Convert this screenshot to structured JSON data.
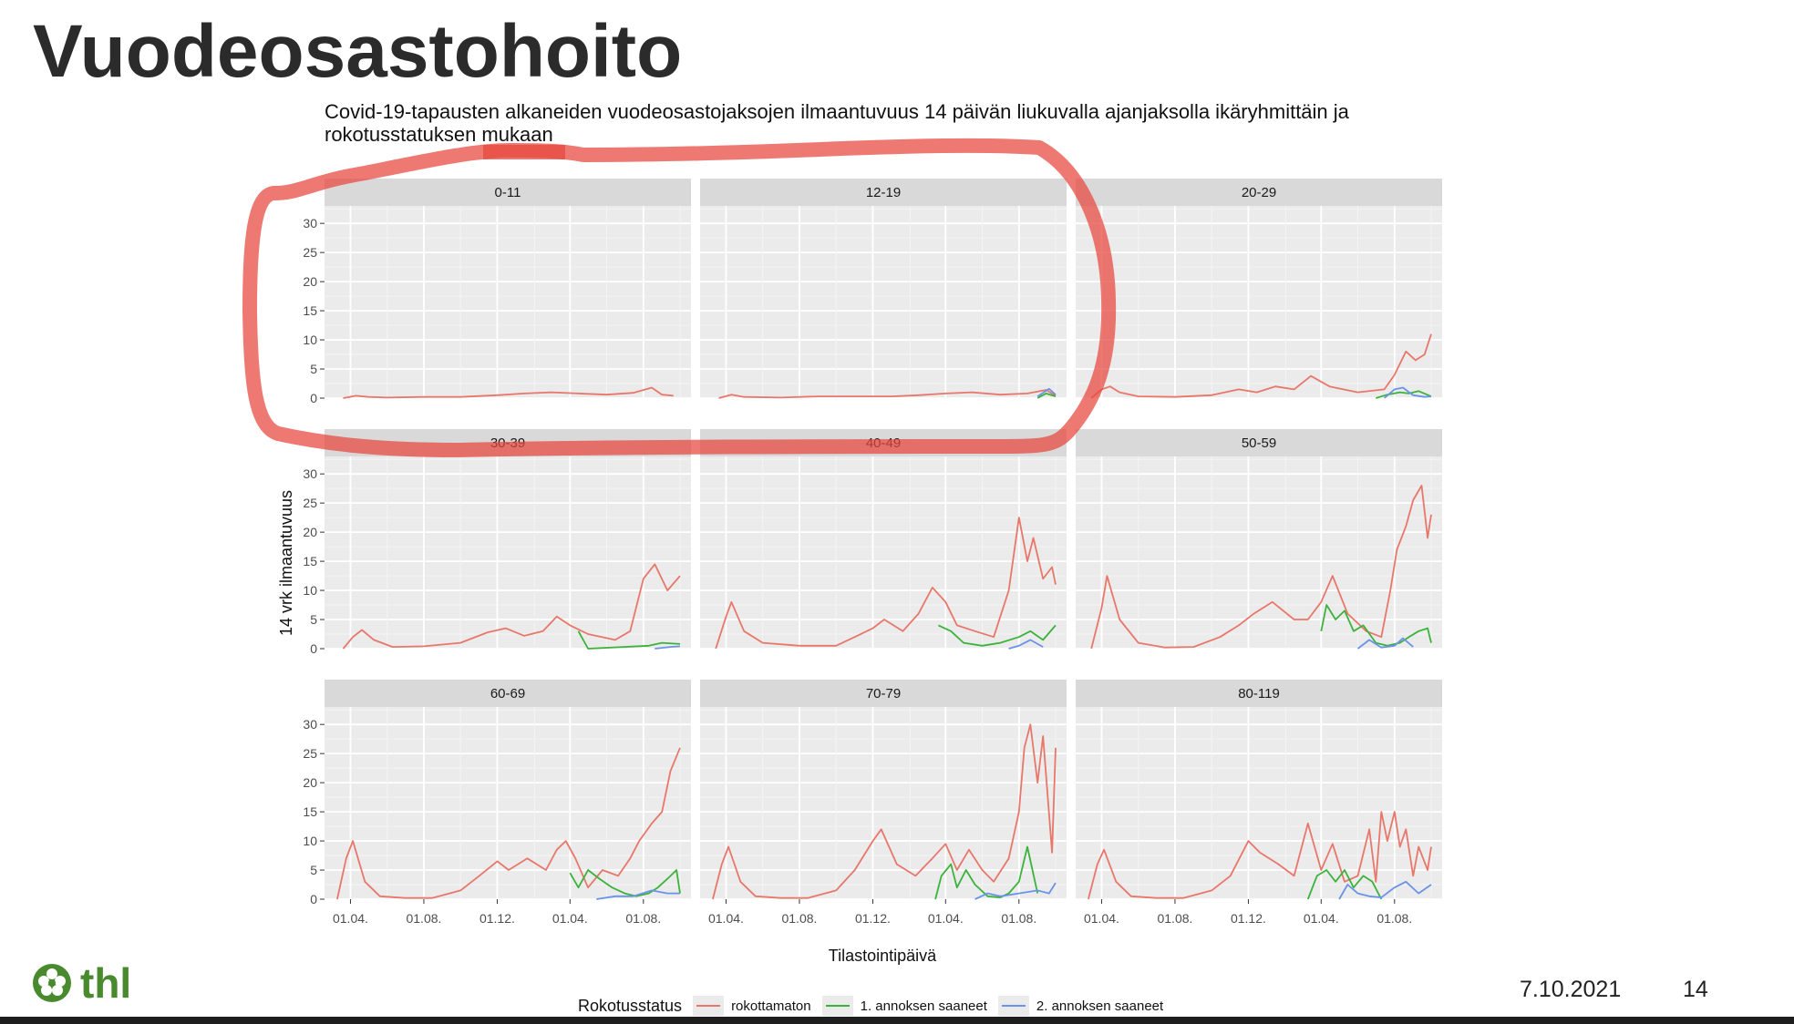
{
  "slide": {
    "title": "Vuodeosastohoito",
    "date": "7.10.2021",
    "page": "14",
    "logo_text": "thl"
  },
  "chart_data": {
    "type": "line",
    "title": "Covid-19-tapausten alkaneiden vuodeosastojaksojen ilmaantuvuus 14 päivän liukuvalla ajanjaksolla ikäryhmittäin ja rokotusstatuksen mukaan",
    "xlabel": "Tilastointipäivä",
    "ylabel": "14 vrk ilmaantuvuus",
    "ylim": [
      0,
      33
    ],
    "y_ticks": [
      "0",
      "5",
      "10",
      "15",
      "20",
      "25",
      "30"
    ],
    "x_ticks": [
      "01.04.",
      "01.08.",
      "01.12.",
      "01.04.",
      "01.08."
    ],
    "x_tick_dates": [
      "2020-04-01",
      "2020-08-01",
      "2020-12-01",
      "2021-04-01",
      "2021-08-01"
    ],
    "x_range": [
      "2020-03-01",
      "2021-10-07"
    ],
    "grid": true,
    "legend": {
      "title": "Rokotusstatus",
      "placement": "bottom",
      "entries": [
        {
          "label": "rokottamaton",
          "color": "#e8776b"
        },
        {
          "label": "1. annoksen saaneet",
          "color": "#3bb33b"
        },
        {
          "label": "2. annoksen saaneet",
          "color": "#6a93e8"
        }
      ]
    },
    "annotation": {
      "shape": "hand-drawn red ellipse",
      "color": "#e8453c",
      "encloses": [
        "0-11",
        "12-19"
      ]
    },
    "panels": [
      {
        "label": "0-11",
        "series": [
          {
            "name": "rokottamaton",
            "x": [
              "2020-03-20",
              "2020-04-10",
              "2020-05-01",
              "2020-06-01",
              "2020-08-01",
              "2020-10-01",
              "2020-12-01",
              "2021-01-15",
              "2021-03-01",
              "2021-04-15",
              "2021-06-01",
              "2021-07-15",
              "2021-08-15",
              "2021-09-01",
              "2021-09-20"
            ],
            "y": [
              0,
              0.4,
              0.2,
              0.1,
              0.2,
              0.2,
              0.5,
              0.8,
              1.0,
              0.8,
              0.6,
              0.9,
              1.8,
              0.6,
              0.4
            ]
          }
        ]
      },
      {
        "label": "12-19",
        "series": [
          {
            "name": "rokottamaton",
            "x": [
              "2020-03-20",
              "2020-04-10",
              "2020-05-01",
              "2020-07-01",
              "2020-09-01",
              "2020-11-01",
              "2021-01-01",
              "2021-02-15",
              "2021-04-01",
              "2021-05-15",
              "2021-07-01",
              "2021-08-15",
              "2021-09-15",
              "2021-10-01"
            ],
            "y": [
              0,
              0.6,
              0.2,
              0.1,
              0.3,
              0.3,
              0.3,
              0.5,
              0.8,
              1.0,
              0.6,
              0.8,
              1.4,
              0.4
            ]
          },
          {
            "name": "1. annoksen saaneet",
            "x": [
              "2021-09-01",
              "2021-09-15",
              "2021-10-01"
            ],
            "y": [
              0,
              0.8,
              0.3
            ]
          },
          {
            "name": "2. annoksen saaneet",
            "x": [
              "2021-09-01",
              "2021-09-20",
              "2021-10-01"
            ],
            "y": [
              0.3,
              1.6,
              0.6
            ]
          }
        ]
      },
      {
        "label": "20-29",
        "series": [
          {
            "name": "rokottamaton",
            "x": [
              "2020-03-15",
              "2020-04-01",
              "2020-04-15",
              "2020-05-01",
              "2020-06-01",
              "2020-08-01",
              "2020-10-01",
              "2020-11-15",
              "2020-12-15",
              "2021-01-15",
              "2021-02-15",
              "2021-03-15",
              "2021-04-15",
              "2021-06-01",
              "2021-07-15",
              "2021-08-01",
              "2021-08-20",
              "2021-09-05",
              "2021-09-20",
              "2021-10-01"
            ],
            "y": [
              0,
              1.5,
              2.0,
              1.0,
              0.3,
              0.2,
              0.5,
              1.5,
              1.0,
              2.0,
              1.5,
              3.8,
              2.0,
              1.0,
              1.5,
              4.0,
              8.0,
              6.5,
              7.5,
              11.0
            ]
          },
          {
            "name": "1. annoksen saaneet",
            "x": [
              "2021-07-01",
              "2021-07-20",
              "2021-08-10",
              "2021-08-25",
              "2021-09-10",
              "2021-10-01"
            ],
            "y": [
              0,
              0.6,
              1.0,
              0.8,
              1.2,
              0.3
            ]
          },
          {
            "name": "2. annoksen saaneet",
            "x": [
              "2021-07-15",
              "2021-08-01",
              "2021-08-15",
              "2021-09-01",
              "2021-09-20",
              "2021-10-01"
            ],
            "y": [
              0,
              1.5,
              1.8,
              0.5,
              0.2,
              0.3
            ]
          }
        ]
      },
      {
        "label": "30-39",
        "series": [
          {
            "name": "rokottamaton",
            "x": [
              "2020-03-20",
              "2020-04-05",
              "2020-04-20",
              "2020-05-10",
              "2020-06-10",
              "2020-08-01",
              "2020-10-01",
              "2020-11-15",
              "2020-12-15",
              "2021-01-15",
              "2021-02-15",
              "2021-03-10",
              "2021-04-01",
              "2021-05-01",
              "2021-06-15",
              "2021-07-10",
              "2021-08-01",
              "2021-08-20",
              "2021-09-10",
              "2021-10-01"
            ],
            "y": [
              0,
              2.0,
              3.2,
              1.5,
              0.3,
              0.4,
              1.0,
              2.8,
              3.5,
              2.2,
              3.0,
              5.5,
              4.0,
              2.5,
              1.5,
              3.0,
              12.0,
              14.5,
              10.0,
              12.5
            ]
          },
          {
            "name": "1. annoksen saaneet",
            "x": [
              "2021-04-15",
              "2021-05-01",
              "2021-08-10",
              "2021-09-01",
              "2021-10-01"
            ],
            "y": [
              3.0,
              0,
              0.5,
              1.0,
              0.8
            ]
          },
          {
            "name": "2. annoksen saaneet",
            "x": [
              "2021-08-20",
              "2021-09-15",
              "2021-10-01"
            ],
            "y": [
              0,
              0.3,
              0.4
            ]
          }
        ]
      },
      {
        "label": "40-49",
        "series": [
          {
            "name": "rokottamaton",
            "x": [
              "2020-03-15",
              "2020-04-01",
              "2020-04-10",
              "2020-05-01",
              "2020-06-01",
              "2020-08-01",
              "2020-10-01",
              "2020-11-01",
              "2020-12-01",
              "2020-12-20",
              "2021-01-20",
              "2021-02-15",
              "2021-03-10",
              "2021-04-01",
              "2021-04-20",
              "2021-05-20",
              "2021-06-20",
              "2021-07-15",
              "2021-08-01",
              "2021-08-15",
              "2021-08-25",
              "2021-09-10",
              "2021-09-25",
              "2021-10-01"
            ],
            "y": [
              0,
              5.5,
              8.0,
              3.0,
              1.0,
              0.5,
              0.5,
              2.0,
              3.5,
              5.0,
              3.0,
              6.0,
              10.5,
              8.0,
              4.0,
              3.0,
              2.0,
              10.0,
              22.5,
              15.0,
              19.0,
              12.0,
              14.0,
              11.0
            ]
          },
          {
            "name": "1. annoksen saaneet",
            "x": [
              "2021-03-20",
              "2021-04-10",
              "2021-05-01",
              "2021-06-01",
              "2021-07-01",
              "2021-08-01",
              "2021-08-20",
              "2021-09-10",
              "2021-10-01"
            ],
            "y": [
              4.0,
              3.0,
              1.0,
              0.5,
              1.0,
              2.0,
              3.0,
              1.5,
              4.0
            ]
          },
          {
            "name": "2. annoksen saaneet",
            "x": [
              "2021-07-15",
              "2021-08-01",
              "2021-08-20",
              "2021-09-10"
            ],
            "y": [
              0,
              0.5,
              1.5,
              0.3
            ]
          }
        ]
      },
      {
        "label": "50-59",
        "series": [
          {
            "name": "rokottamaton",
            "x": [
              "2020-03-15",
              "2020-04-01",
              "2020-04-10",
              "2020-05-01",
              "2020-06-01",
              "2020-07-15",
              "2020-09-01",
              "2020-10-15",
              "2020-11-15",
              "2020-12-10",
              "2021-01-10",
              "2021-02-15",
              "2021-03-10",
              "2021-04-01",
              "2021-04-20",
              "2021-05-15",
              "2021-06-15",
              "2021-07-10",
              "2021-07-25",
              "2021-08-05",
              "2021-08-20",
              "2021-09-01",
              "2021-09-15",
              "2021-09-25",
              "2021-10-01"
            ],
            "y": [
              0,
              7.0,
              12.5,
              5.0,
              1.0,
              0.2,
              0.3,
              2.0,
              4.0,
              6.0,
              8.0,
              5.0,
              5.0,
              8.0,
              12.5,
              6.0,
              3.0,
              2.0,
              10.0,
              17.0,
              21.0,
              25.5,
              28.0,
              19.0,
              23.0
            ]
          },
          {
            "name": "1. annoksen saaneet",
            "x": [
              "2021-04-01",
              "2021-04-10",
              "2021-04-25",
              "2021-05-10",
              "2021-05-25",
              "2021-06-10",
              "2021-07-01",
              "2021-07-20",
              "2021-08-10",
              "2021-08-25",
              "2021-09-10",
              "2021-09-25",
              "2021-10-01"
            ],
            "y": [
              3.0,
              7.5,
              5.0,
              6.5,
              3.0,
              4.0,
              1.0,
              0.5,
              1.0,
              2.0,
              3.0,
              3.5,
              1.0
            ]
          },
          {
            "name": "2. annoksen saaneet",
            "x": [
              "2021-06-01",
              "2021-06-20",
              "2021-07-10",
              "2021-08-01",
              "2021-08-15",
              "2021-09-01"
            ],
            "y": [
              0,
              1.5,
              0.2,
              0.5,
              1.8,
              0.3
            ]
          }
        ]
      },
      {
        "label": "60-69",
        "series": [
          {
            "name": "rokottamaton",
            "x": [
              "2020-03-10",
              "2020-03-25",
              "2020-04-05",
              "2020-04-25",
              "2020-05-20",
              "2020-07-01",
              "2020-08-15",
              "2020-10-01",
              "2020-11-01",
              "2020-12-01",
              "2020-12-20",
              "2021-01-20",
              "2021-02-20",
              "2021-03-10",
              "2021-03-25",
              "2021-04-10",
              "2021-05-01",
              "2021-05-25",
              "2021-06-20",
              "2021-07-10",
              "2021-07-25",
              "2021-08-15",
              "2021-09-01",
              "2021-09-15",
              "2021-10-01"
            ],
            "y": [
              0,
              7.0,
              10.0,
              3.0,
              0.5,
              0.2,
              0.2,
              1.5,
              4.0,
              6.5,
              5.0,
              7.0,
              5.0,
              8.5,
              10.0,
              7.0,
              2.0,
              5.0,
              4.0,
              7.0,
              10.0,
              13.0,
              15.0,
              22.0,
              26.0
            ]
          },
          {
            "name": "1. annoksen saaneet",
            "x": [
              "2021-04-01",
              "2021-04-15",
              "2021-05-01",
              "2021-05-20",
              "2021-06-10",
              "2021-07-01",
              "2021-07-20",
              "2021-08-10",
              "2021-08-25",
              "2021-09-10",
              "2021-09-25",
              "2021-10-01"
            ],
            "y": [
              4.5,
              2.0,
              5.0,
              3.5,
              2.0,
              1.0,
              0.5,
              1.0,
              2.0,
              3.5,
              5.0,
              1.0
            ]
          },
          {
            "name": "2. annoksen saaneet",
            "x": [
              "2021-05-15",
              "2021-06-15",
              "2021-07-15",
              "2021-08-15",
              "2021-09-10",
              "2021-10-01"
            ],
            "y": [
              0,
              0.5,
              0.5,
              1.5,
              1.0,
              1.0
            ]
          }
        ]
      },
      {
        "label": "70-79",
        "series": [
          {
            "name": "rokottamaton",
            "x": [
              "2020-03-10",
              "2020-03-25",
              "2020-04-05",
              "2020-04-25",
              "2020-05-20",
              "2020-07-01",
              "2020-08-15",
              "2020-10-01",
              "2020-11-01",
              "2020-12-01",
              "2020-12-15",
              "2021-01-10",
              "2021-02-10",
              "2021-03-10",
              "2021-04-01",
              "2021-04-20",
              "2021-05-10",
              "2021-06-01",
              "2021-06-20",
              "2021-07-15",
              "2021-08-01",
              "2021-08-10",
              "2021-08-20",
              "2021-09-01",
              "2021-09-10",
              "2021-09-25",
              "2021-10-01"
            ],
            "y": [
              0,
              6.0,
              9.0,
              3.0,
              0.5,
              0.2,
              0.2,
              1.5,
              5.0,
              10.0,
              12.0,
              6.0,
              4.0,
              7.0,
              9.5,
              5.0,
              8.5,
              5.0,
              3.0,
              7.0,
              15.0,
              26.0,
              30.0,
              20.0,
              28.0,
              8.0,
              26.0
            ]
          },
          {
            "name": "1. annoksen saaneet",
            "x": [
              "2021-03-15",
              "2021-03-25",
              "2021-04-10",
              "2021-04-20",
              "2021-05-05",
              "2021-05-20",
              "2021-06-10",
              "2021-07-01",
              "2021-07-15",
              "2021-08-01",
              "2021-08-15",
              "2021-09-01"
            ],
            "y": [
              0,
              4.0,
              6.0,
              2.0,
              5.0,
              2.5,
              0.5,
              0.3,
              1.0,
              3.0,
              9.0,
              1.0
            ]
          },
          {
            "name": "2. annoksen saaneet",
            "x": [
              "2021-05-20",
              "2021-06-10",
              "2021-07-01",
              "2021-08-01",
              "2021-09-01",
              "2021-09-20",
              "2021-10-01"
            ],
            "y": [
              0,
              1.0,
              0.5,
              1.0,
              1.5,
              1.0,
              2.8
            ]
          }
        ]
      },
      {
        "label": "80-119",
        "series": [
          {
            "name": "rokottamaton",
            "x": [
              "2020-03-10",
              "2020-03-25",
              "2020-04-05",
              "2020-04-25",
              "2020-05-20",
              "2020-07-01",
              "2020-08-15",
              "2020-10-01",
              "2020-11-01",
              "2020-12-01",
              "2020-12-20",
              "2021-01-20",
              "2021-02-15",
              "2021-03-10",
              "2021-04-01",
              "2021-04-20",
              "2021-05-10",
              "2021-06-01",
              "2021-06-20",
              "2021-07-01",
              "2021-07-10",
              "2021-07-20",
              "2021-08-01",
              "2021-08-10",
              "2021-08-20",
              "2021-09-01",
              "2021-09-10",
              "2021-09-25",
              "2021-10-01"
            ],
            "y": [
              0,
              6.0,
              8.5,
              3.0,
              0.5,
              0.2,
              0.2,
              1.5,
              4.0,
              10.0,
              8.0,
              6.0,
              4.0,
              13.0,
              5.0,
              9.5,
              3.0,
              4.0,
              12.0,
              3.0,
              15.0,
              10.0,
              15.0,
              9.0,
              12.0,
              4.0,
              9.0,
              5.0,
              9.0
            ]
          },
          {
            "name": "1. annoksen saaneet",
            "x": [
              "2021-03-10",
              "2021-03-25",
              "2021-04-10",
              "2021-04-25",
              "2021-05-10",
              "2021-05-25",
              "2021-06-10",
              "2021-06-25",
              "2021-07-10"
            ],
            "y": [
              0,
              4.0,
              5.0,
              3.0,
              5.0,
              2.0,
              4.0,
              3.0,
              0
            ]
          },
          {
            "name": "2. annoksen saaneet",
            "x": [
              "2021-05-01",
              "2021-05-15",
              "2021-06-01",
              "2021-06-20",
              "2021-07-10",
              "2021-08-01",
              "2021-08-20",
              "2021-09-10",
              "2021-10-01"
            ],
            "y": [
              0,
              2.5,
              1.0,
              0.5,
              0.3,
              2.0,
              3.0,
              1.0,
              2.5
            ]
          }
        ]
      }
    ]
  }
}
